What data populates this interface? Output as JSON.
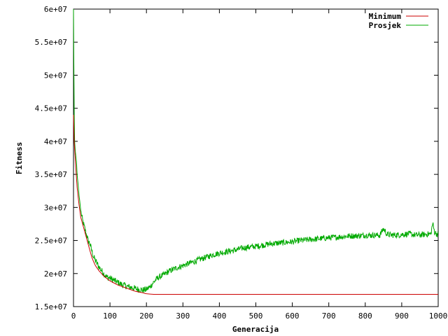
{
  "chart_data": {
    "type": "line",
    "title": "",
    "xlabel": "Generacija",
    "ylabel": "Fitness",
    "xlim": [
      0,
      1000
    ],
    "ylim": [
      15000000,
      60000000
    ],
    "x_ticks": [
      "0",
      "100",
      "200",
      "300",
      "400",
      "500",
      "600",
      "700",
      "800",
      "900",
      "1000"
    ],
    "y_ticks": [
      "1.5e+07",
      "2e+07",
      "2.5e+07",
      "3e+07",
      "3.5e+07",
      "4e+07",
      "4.5e+07",
      "5e+07",
      "5.5e+07",
      "6e+07"
    ],
    "grid": false,
    "legend_position": "top-right",
    "series": [
      {
        "name": "Minimum",
        "color": "#cc0000",
        "x": [
          0,
          2,
          5,
          10,
          15,
          20,
          25,
          30,
          35,
          40,
          45,
          50,
          55,
          60,
          65,
          70,
          80,
          90,
          100,
          110,
          120,
          130,
          140,
          150,
          160,
          170,
          180,
          190,
          195,
          200,
          210,
          220,
          300,
          400,
          500,
          600,
          700,
          800,
          900,
          1000
        ],
        "y": [
          44000000,
          40000000,
          37000000,
          33000000,
          30500000,
          28500000,
          27500000,
          26500000,
          25500000,
          24500000,
          23500000,
          22500000,
          21800000,
          21200000,
          20800000,
          20400000,
          19800000,
          19300000,
          18900000,
          18600000,
          18300000,
          18100000,
          17900000,
          17700000,
          17500000,
          17300000,
          17200000,
          17100000,
          17000000,
          16950000,
          16900000,
          16850000,
          16850000,
          16850000,
          16850000,
          16850000,
          16850000,
          16850000,
          16850000,
          16850000
        ]
      },
      {
        "name": "Prosjek",
        "color": "#00aa00",
        "x": [
          0,
          1,
          2,
          3,
          5,
          8,
          10,
          15,
          20,
          25,
          30,
          35,
          40,
          45,
          50,
          55,
          60,
          65,
          70,
          80,
          90,
          100,
          110,
          120,
          130,
          140,
          150,
          160,
          170,
          180,
          190,
          200,
          210,
          220,
          230,
          240,
          250,
          260,
          280,
          300,
          320,
          340,
          360,
          380,
          400,
          420,
          440,
          460,
          480,
          500,
          520,
          540,
          560,
          580,
          600,
          620,
          640,
          660,
          680,
          700,
          720,
          740,
          760,
          780,
          800,
          820,
          840,
          850,
          860,
          880,
          900,
          920,
          940,
          960,
          980,
          985,
          990,
          1000
        ],
        "y": [
          60000000,
          52000000,
          45000000,
          40000000,
          38500000,
          37000000,
          35000000,
          32000000,
          29500000,
          28000000,
          27000000,
          26000000,
          25000000,
          24500000,
          23500000,
          22500000,
          22000000,
          21500000,
          21000000,
          20200000,
          19500000,
          19300000,
          19000000,
          18700000,
          18400000,
          18200000,
          18000000,
          17900000,
          17700000,
          17600000,
          17500000,
          17600000,
          18000000,
          18700000,
          19300000,
          19600000,
          19900000,
          20300000,
          20800000,
          21200000,
          21600000,
          22000000,
          22400000,
          22800000,
          23100000,
          23300000,
          23500000,
          23800000,
          24000000,
          24100000,
          24300000,
          24500000,
          24600000,
          24700000,
          24800000,
          25000000,
          25100000,
          25200000,
          25300000,
          25400000,
          25500000,
          25600000,
          25700000,
          25700000,
          25800000,
          25800000,
          25800000,
          26800000,
          25900000,
          25800000,
          25900000,
          26000000,
          25800000,
          25900000,
          26000000,
          27600000,
          26300000,
          25800000
        ]
      }
    ]
  }
}
